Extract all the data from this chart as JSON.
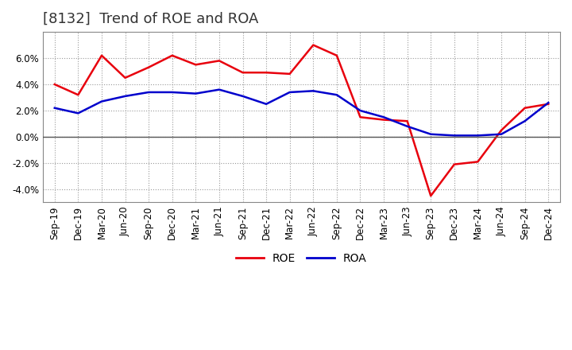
{
  "title": "[8132]  Trend of ROE and ROA",
  "labels": [
    "Sep-19",
    "Dec-19",
    "Mar-20",
    "Jun-20",
    "Sep-20",
    "Dec-20",
    "Mar-21",
    "Jun-21",
    "Sep-21",
    "Dec-21",
    "Mar-22",
    "Jun-22",
    "Sep-22",
    "Dec-22",
    "Mar-23",
    "Jun-23",
    "Sep-23",
    "Dec-23",
    "Mar-24",
    "Jun-24",
    "Sep-24",
    "Dec-24"
  ],
  "roe": [
    4.0,
    3.2,
    6.2,
    4.5,
    5.3,
    6.2,
    5.5,
    5.8,
    4.9,
    4.9,
    4.8,
    7.0,
    6.2,
    1.5,
    1.3,
    1.2,
    -4.5,
    -2.1,
    -1.9,
    0.5,
    2.2,
    2.5
  ],
  "roa": [
    2.2,
    1.8,
    2.7,
    3.1,
    3.4,
    3.4,
    3.3,
    3.6,
    3.1,
    2.5,
    3.4,
    3.5,
    3.2,
    2.0,
    1.5,
    0.8,
    0.2,
    0.1,
    0.1,
    0.2,
    1.2,
    2.6
  ],
  "roe_color": "#e8000d",
  "roa_color": "#0000cc",
  "ylim": [
    -5.0,
    8.0
  ],
  "yticks": [
    -4.0,
    -2.0,
    0.0,
    2.0,
    4.0,
    6.0
  ],
  "background_color": "#ffffff",
  "grid_color": "#999999",
  "title_fontsize": 13,
  "title_color": "#333333",
  "axis_fontsize": 8.5,
  "legend_fontsize": 10
}
